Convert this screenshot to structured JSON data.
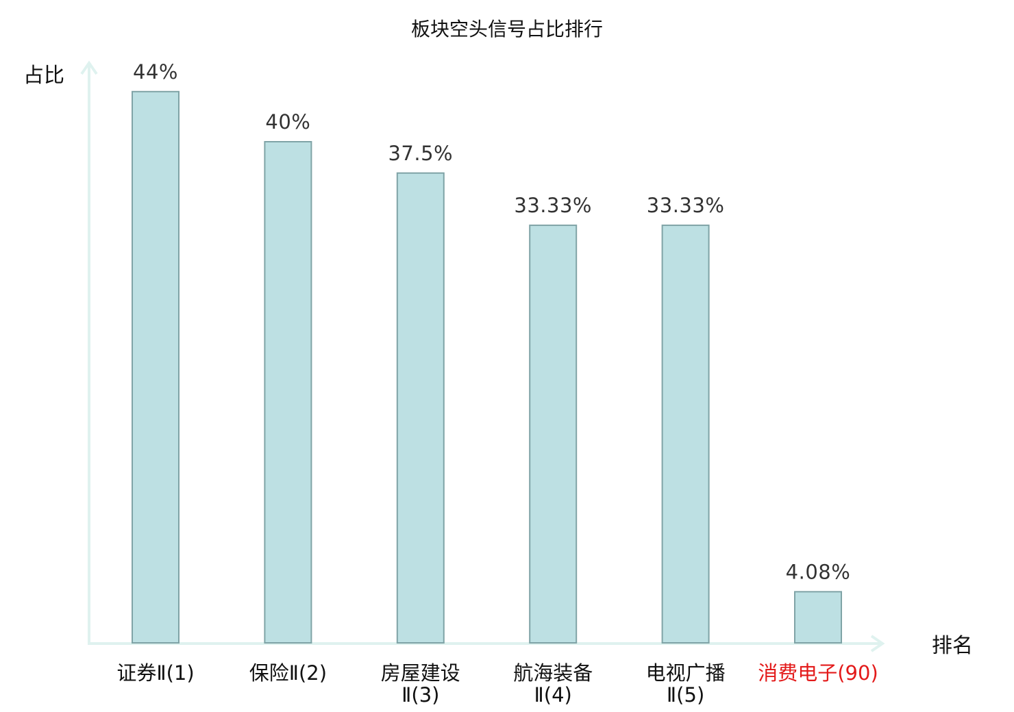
{
  "chart_data": {
    "type": "bar",
    "title": "板块空头信号占比排行",
    "ylabel": "占比",
    "xlabel": "排名",
    "categories": [
      {
        "name": "证券Ⅱ",
        "rank": "(1)"
      },
      {
        "name": "保险Ⅱ",
        "rank": "(2)"
      },
      {
        "name": "房屋建设Ⅱ",
        "rank": "(3)"
      },
      {
        "name": "航海装备Ⅱ",
        "rank": "(4)"
      },
      {
        "name": "电视广播Ⅱ",
        "rank": "(5)"
      },
      {
        "name": "消费电子",
        "rank": "(90)",
        "highlight": true
      }
    ],
    "category_lines": [
      [
        "证券Ⅱ(1)"
      ],
      [
        "保险Ⅱ(2)"
      ],
      [
        "房屋建设",
        "Ⅱ(3)"
      ],
      [
        "航海装备",
        "Ⅱ(4)"
      ],
      [
        "电视广播",
        "Ⅱ(5)"
      ],
      [
        "消费电子(90)"
      ]
    ],
    "values": [
      44,
      40,
      37.5,
      33.33,
      33.33,
      4.08
    ],
    "value_labels": [
      "44%",
      "40%",
      "37.5%",
      "33.33%",
      "33.33%",
      "4.08%"
    ],
    "ylim": [
      0,
      50
    ],
    "grid": false,
    "legend": "none",
    "colors": {
      "bar_fill": "#bde0e3",
      "bar_stroke": "#7fa3a6",
      "axis": "#dff2ef",
      "highlight_text": "#e31a1a",
      "text": "#111111"
    }
  }
}
